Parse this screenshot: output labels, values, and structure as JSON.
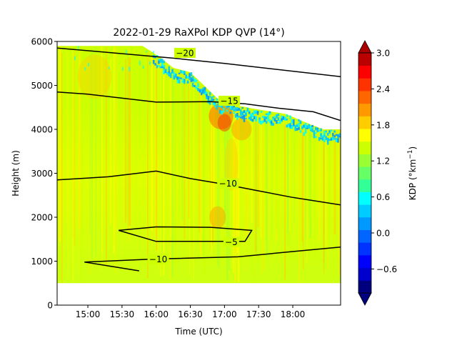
{
  "chart_data": {
    "type": "heatmap",
    "title": "2022-01-29 RaXPol KDP QVP (14°)",
    "xlabel": "Time (UTC)",
    "ylabel": "Height (m)",
    "colorbar_label": "KDP (°km",
    "colorbar_label_sup": "−1",
    "colorbar_label_end": ")",
    "xlim_hours": [
      14.55,
      18.7
    ],
    "ylim": [
      0,
      6000
    ],
    "x_ticks": [
      {
        "label": "15:00",
        "value": 15.0
      },
      {
        "label": "15:30",
        "value": 15.5
      },
      {
        "label": "16:00",
        "value": 16.0
      },
      {
        "label": "16:30",
        "value": 16.5
      },
      {
        "label": "17:00",
        "value": 17.0
      },
      {
        "label": "17:30",
        "value": 17.5
      },
      {
        "label": "18:00",
        "value": 18.0
      }
    ],
    "y_ticks": [
      0,
      1000,
      2000,
      3000,
      4000,
      5000,
      6000
    ],
    "colorbar": {
      "range": [
        -1.0,
        3.0
      ],
      "ticks": [
        "−0.6",
        "0.0",
        "0.6",
        "1.2",
        "1.8",
        "2.4",
        "3.0"
      ],
      "tick_values": [
        -0.6,
        0.0,
        0.6,
        1.2,
        1.8,
        2.4,
        3.0
      ],
      "colors": [
        "#00007f",
        "#0000cc",
        "#0000ff",
        "#0033ff",
        "#0066ff",
        "#0099ff",
        "#00ccff",
        "#00ffff",
        "#33ff99",
        "#66ff66",
        "#99ff33",
        "#ccff00",
        "#ffff00",
        "#ffcc00",
        "#ff9900",
        "#ff6600",
        "#ff3300",
        "#ff0000",
        "#bb0000"
      ],
      "extend": "both"
    },
    "data_bottom": 500,
    "echo_top": [
      [
        14.55,
        5900
      ],
      [
        15.2,
        5900
      ],
      [
        15.8,
        5900
      ],
      [
        16.05,
        5650
      ],
      [
        16.25,
        5400
      ],
      [
        16.5,
        5300
      ],
      [
        16.7,
        5000
      ],
      [
        16.9,
        4700
      ],
      [
        17.15,
        4550
      ],
      [
        17.5,
        4450
      ],
      [
        17.9,
        4350
      ],
      [
        18.2,
        4150
      ],
      [
        18.45,
        4000
      ],
      [
        18.7,
        4000
      ]
    ],
    "contours": [
      {
        "label": "−20",
        "label_at": [
          16.42,
          5740
        ],
        "points": [
          [
            14.55,
            5850
          ],
          [
            16.25,
            5620
          ],
          [
            17.0,
            5500
          ],
          [
            18.7,
            5200
          ]
        ]
      },
      {
        "label": "−15",
        "label_at": [
          17.07,
          4650
        ],
        "points": [
          [
            14.55,
            4850
          ],
          [
            15.0,
            4800
          ],
          [
            16.0,
            4620
          ],
          [
            16.8,
            4630
          ],
          [
            17.3,
            4580
          ],
          [
            17.8,
            4480
          ],
          [
            18.3,
            4400
          ],
          [
            18.7,
            4200
          ]
        ]
      },
      {
        "label": "−10",
        "label_at": [
          17.05,
          2770
        ],
        "points": [
          [
            14.55,
            2850
          ],
          [
            15.3,
            2920
          ],
          [
            16.0,
            3050
          ],
          [
            16.5,
            2880
          ],
          [
            17.0,
            2750
          ],
          [
            17.5,
            2600
          ],
          [
            18.0,
            2450
          ],
          [
            18.7,
            2280
          ]
        ]
      },
      {
        "label": "−5",
        "label_at": [
          17.1,
          1440
        ],
        "points": [
          [
            15.45,
            1700
          ],
          [
            16.0,
            1780
          ],
          [
            16.8,
            1770
          ],
          [
            17.4,
            1700
          ],
          [
            17.3,
            1450
          ],
          [
            16.0,
            1450
          ],
          [
            15.45,
            1700
          ]
        ]
      },
      {
        "label": "−10",
        "label_at": [
          16.03,
          1050
        ],
        "points": [
          [
            14.95,
            980
          ],
          [
            16.0,
            1050
          ],
          [
            17.2,
            1100
          ],
          [
            18.0,
            1220
          ],
          [
            18.7,
            1320
          ]
        ]
      },
      {
        "label": "",
        "label_at": null,
        "points": [
          [
            14.95,
            980
          ],
          [
            15.75,
            780
          ]
        ]
      }
    ]
  }
}
